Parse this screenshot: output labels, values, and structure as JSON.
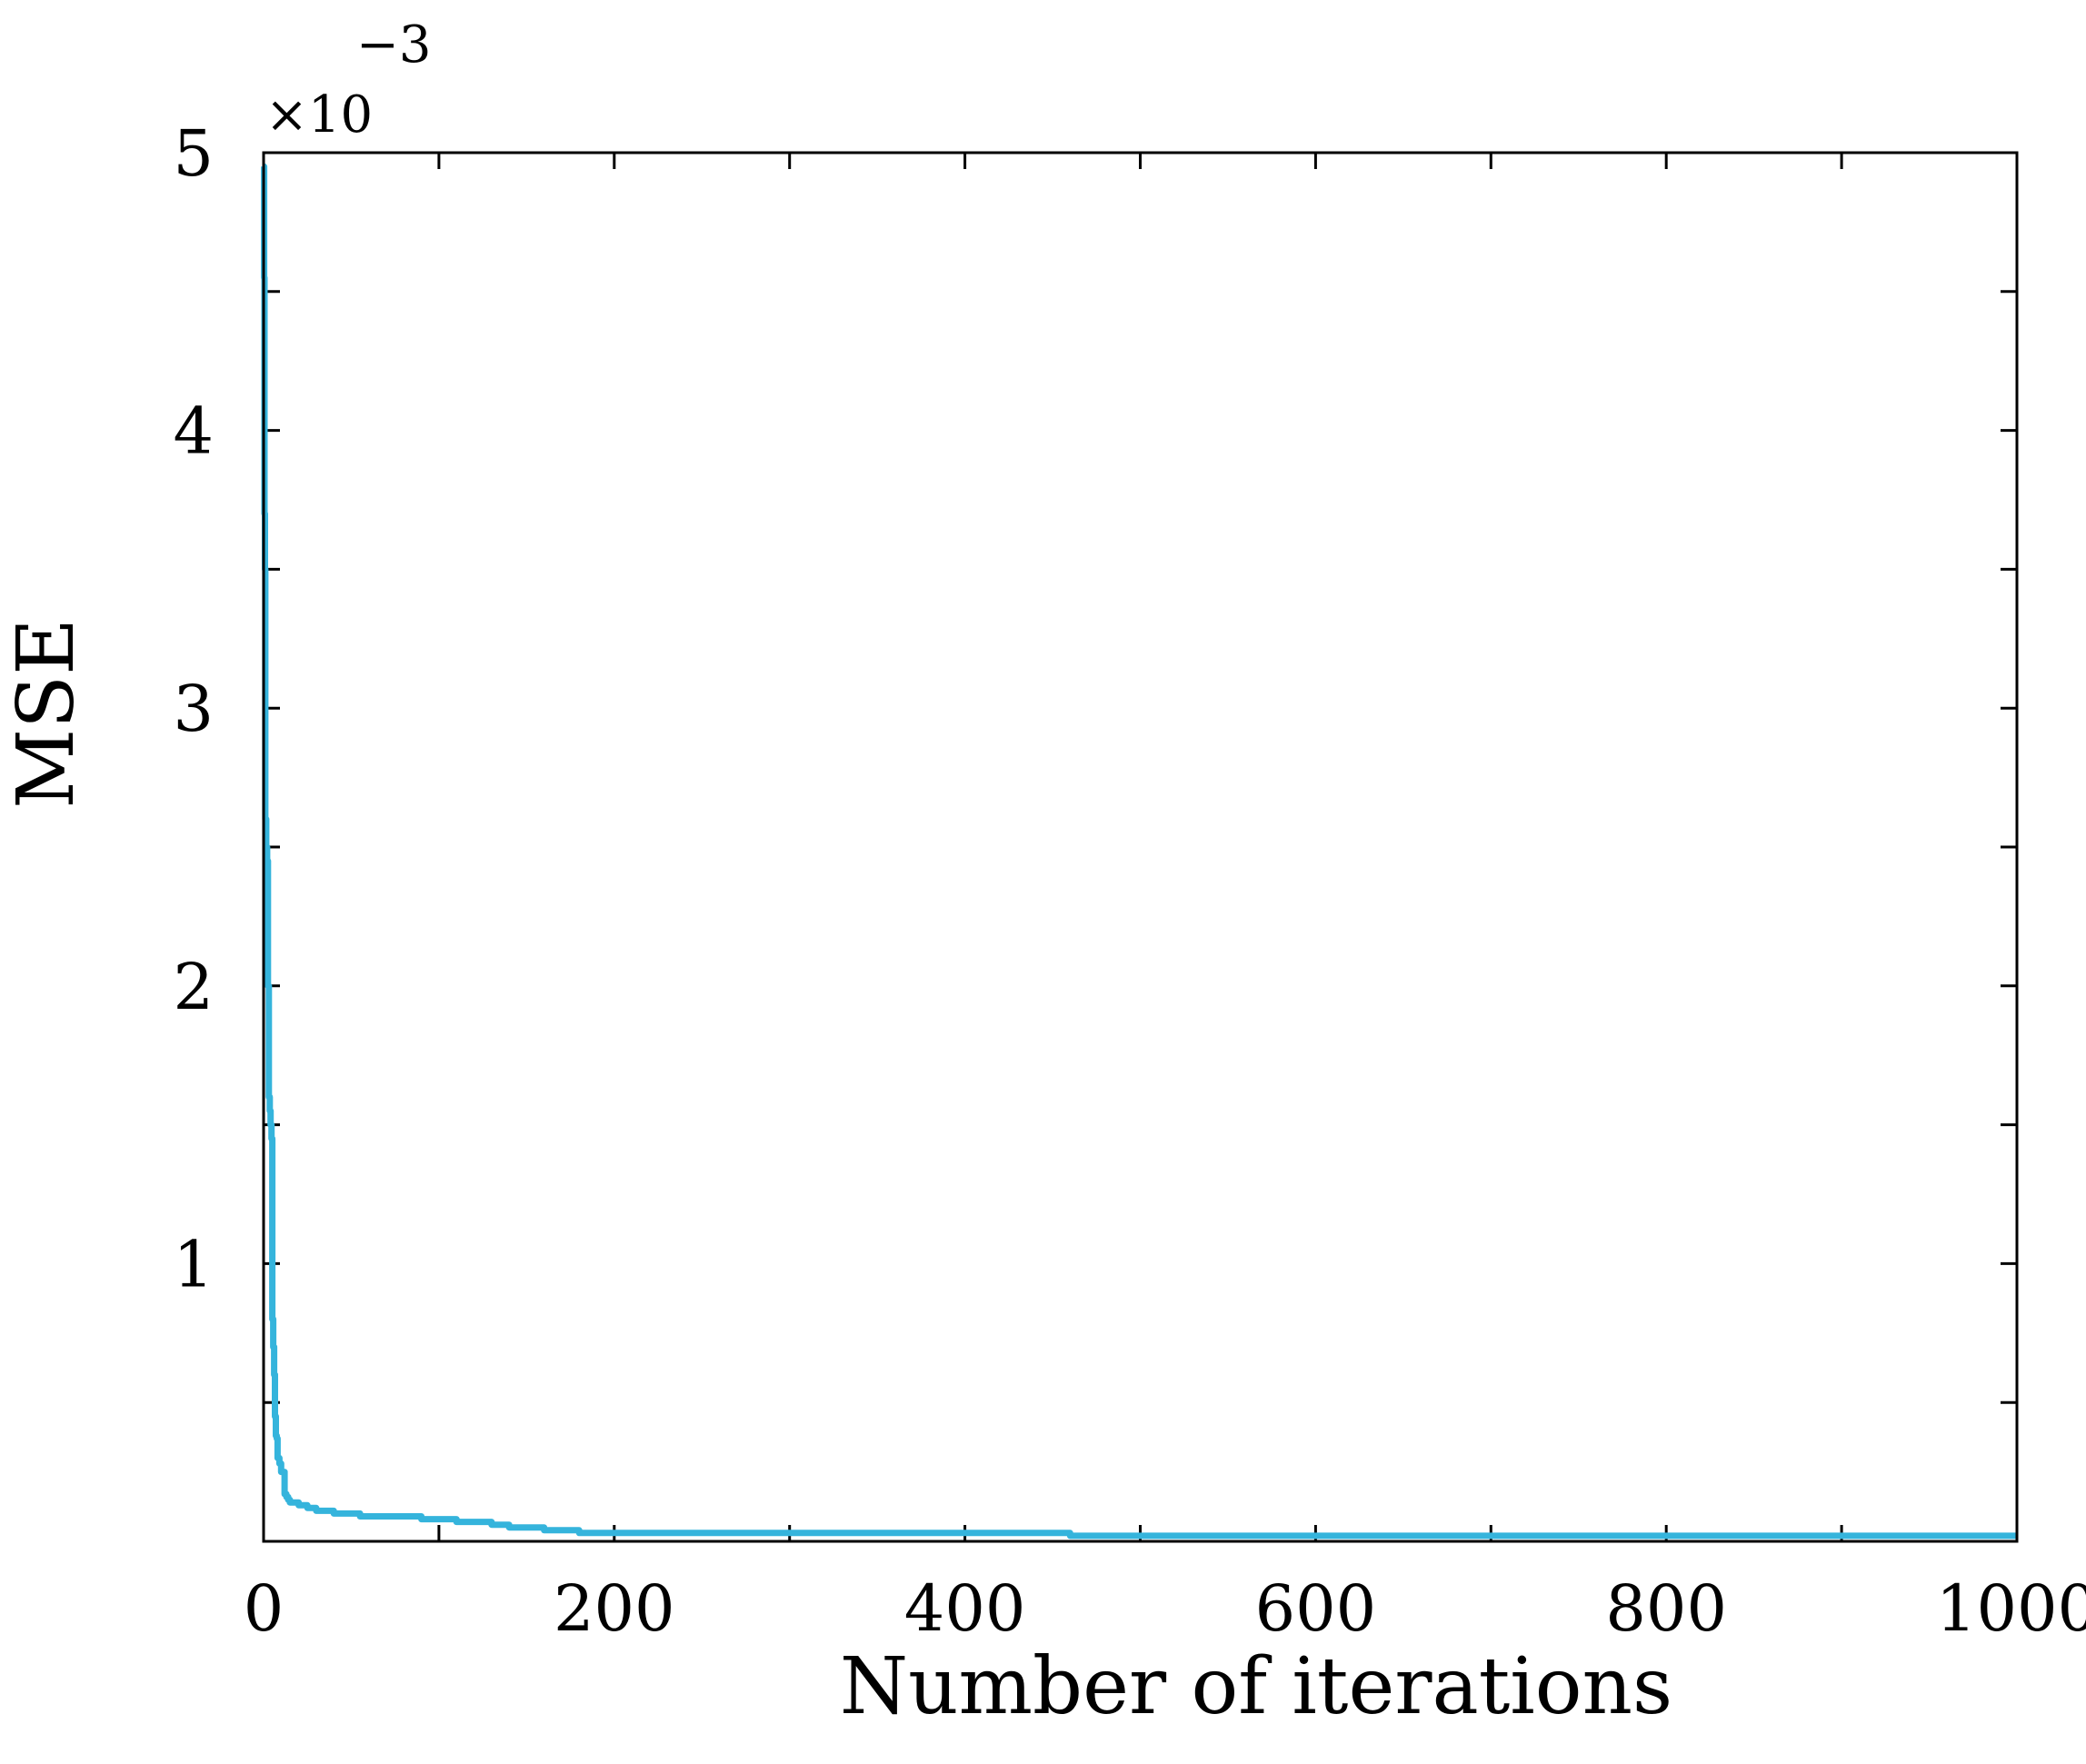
{
  "chart_data": {
    "type": "line",
    "title": "",
    "xlabel": "Number of iterations",
    "ylabel": "MSE",
    "y_scale_label": "×10",
    "y_scale_exponent": "−3",
    "xlim": [
      0,
      1000
    ],
    "ylim": [
      0,
      5
    ],
    "x_ticks": [
      0,
      200,
      400,
      600,
      800,
      1000
    ],
    "x_tick_labels": [
      "0",
      "200",
      "400",
      "600",
      "800",
      "1000"
    ],
    "x_minor_ticks": [
      100,
      300,
      500,
      700,
      900
    ],
    "y_ticks": [
      1,
      2,
      3,
      4,
      5
    ],
    "y_tick_labels": [
      "1",
      "2",
      "3",
      "4",
      "5"
    ],
    "y_minor_ticks": [
      0.5,
      1.5,
      2.5,
      3.5,
      4.5
    ],
    "grid": false,
    "line_color": "#35b4dc",
    "series": [
      {
        "x": [
          0,
          0.3,
          0.5,
          0.8,
          1,
          1.5,
          2,
          2.5,
          3,
          3.5,
          4,
          4.5,
          5,
          5.5,
          6,
          6.5,
          7,
          7.5,
          8,
          9,
          10,
          12,
          13,
          14,
          15,
          20,
          25,
          30,
          35,
          40,
          45,
          50,
          55,
          60,
          70,
          80,
          90,
          100,
          110,
          120,
          130,
          140,
          150,
          160,
          170,
          180,
          190,
          200,
          250,
          300,
          350,
          400,
          450,
          460,
          500,
          600,
          700,
          800,
          900,
          1000
        ],
        "values": [
          4.95,
          4.55,
          3.7,
          3.5,
          2.6,
          2.5,
          2.45,
          2.0,
          1.6,
          1.55,
          1.5,
          1.45,
          0.8,
          0.7,
          0.6,
          0.45,
          0.38,
          0.37,
          0.3,
          0.28,
          0.25,
          0.17,
          0.16,
          0.15,
          0.14,
          0.13,
          0.12,
          0.11,
          0.11,
          0.1,
          0.1,
          0.1,
          0.09,
          0.09,
          0.09,
          0.09,
          0.08,
          0.08,
          0.07,
          0.07,
          0.06,
          0.05,
          0.05,
          0.04,
          0.04,
          0.03,
          0.03,
          0.03,
          0.03,
          0.03,
          0.03,
          0.03,
          0.03,
          0.02,
          0.02,
          0.02,
          0.02,
          0.02,
          0.02,
          0.02
        ]
      }
    ]
  }
}
